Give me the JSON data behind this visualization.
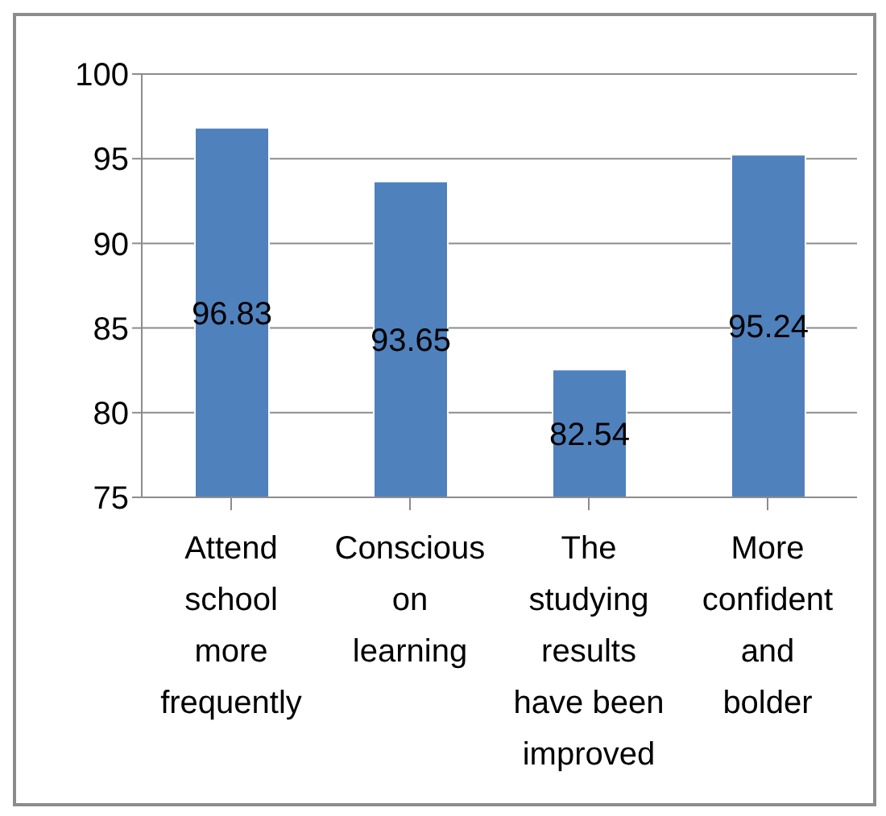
{
  "chart_data": {
    "type": "bar",
    "categories": [
      "Attend school more frequently",
      "Conscious on learning",
      "The studying results have been improved",
      "More confident and bolder"
    ],
    "values": [
      96.83,
      93.65,
      82.54,
      95.24
    ],
    "color": "#4f81bd",
    "ylim": [
      75,
      100
    ],
    "yticks": [
      75,
      80,
      85,
      90,
      95,
      100
    ],
    "grid": "y",
    "data_labels": true
  }
}
